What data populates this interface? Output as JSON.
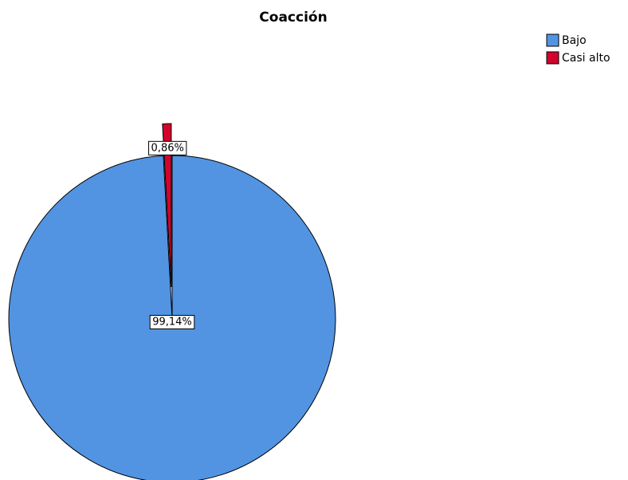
{
  "chart_data": {
    "type": "pie",
    "title": "Coacción",
    "categories": [
      "Bajo",
      "Casi alto"
    ],
    "values": [
      99.14,
      0.86
    ],
    "value_labels": [
      "99,14%",
      "0,86%"
    ],
    "colors": [
      "#5294e2",
      "#d2042d"
    ],
    "legend": "top-right"
  }
}
